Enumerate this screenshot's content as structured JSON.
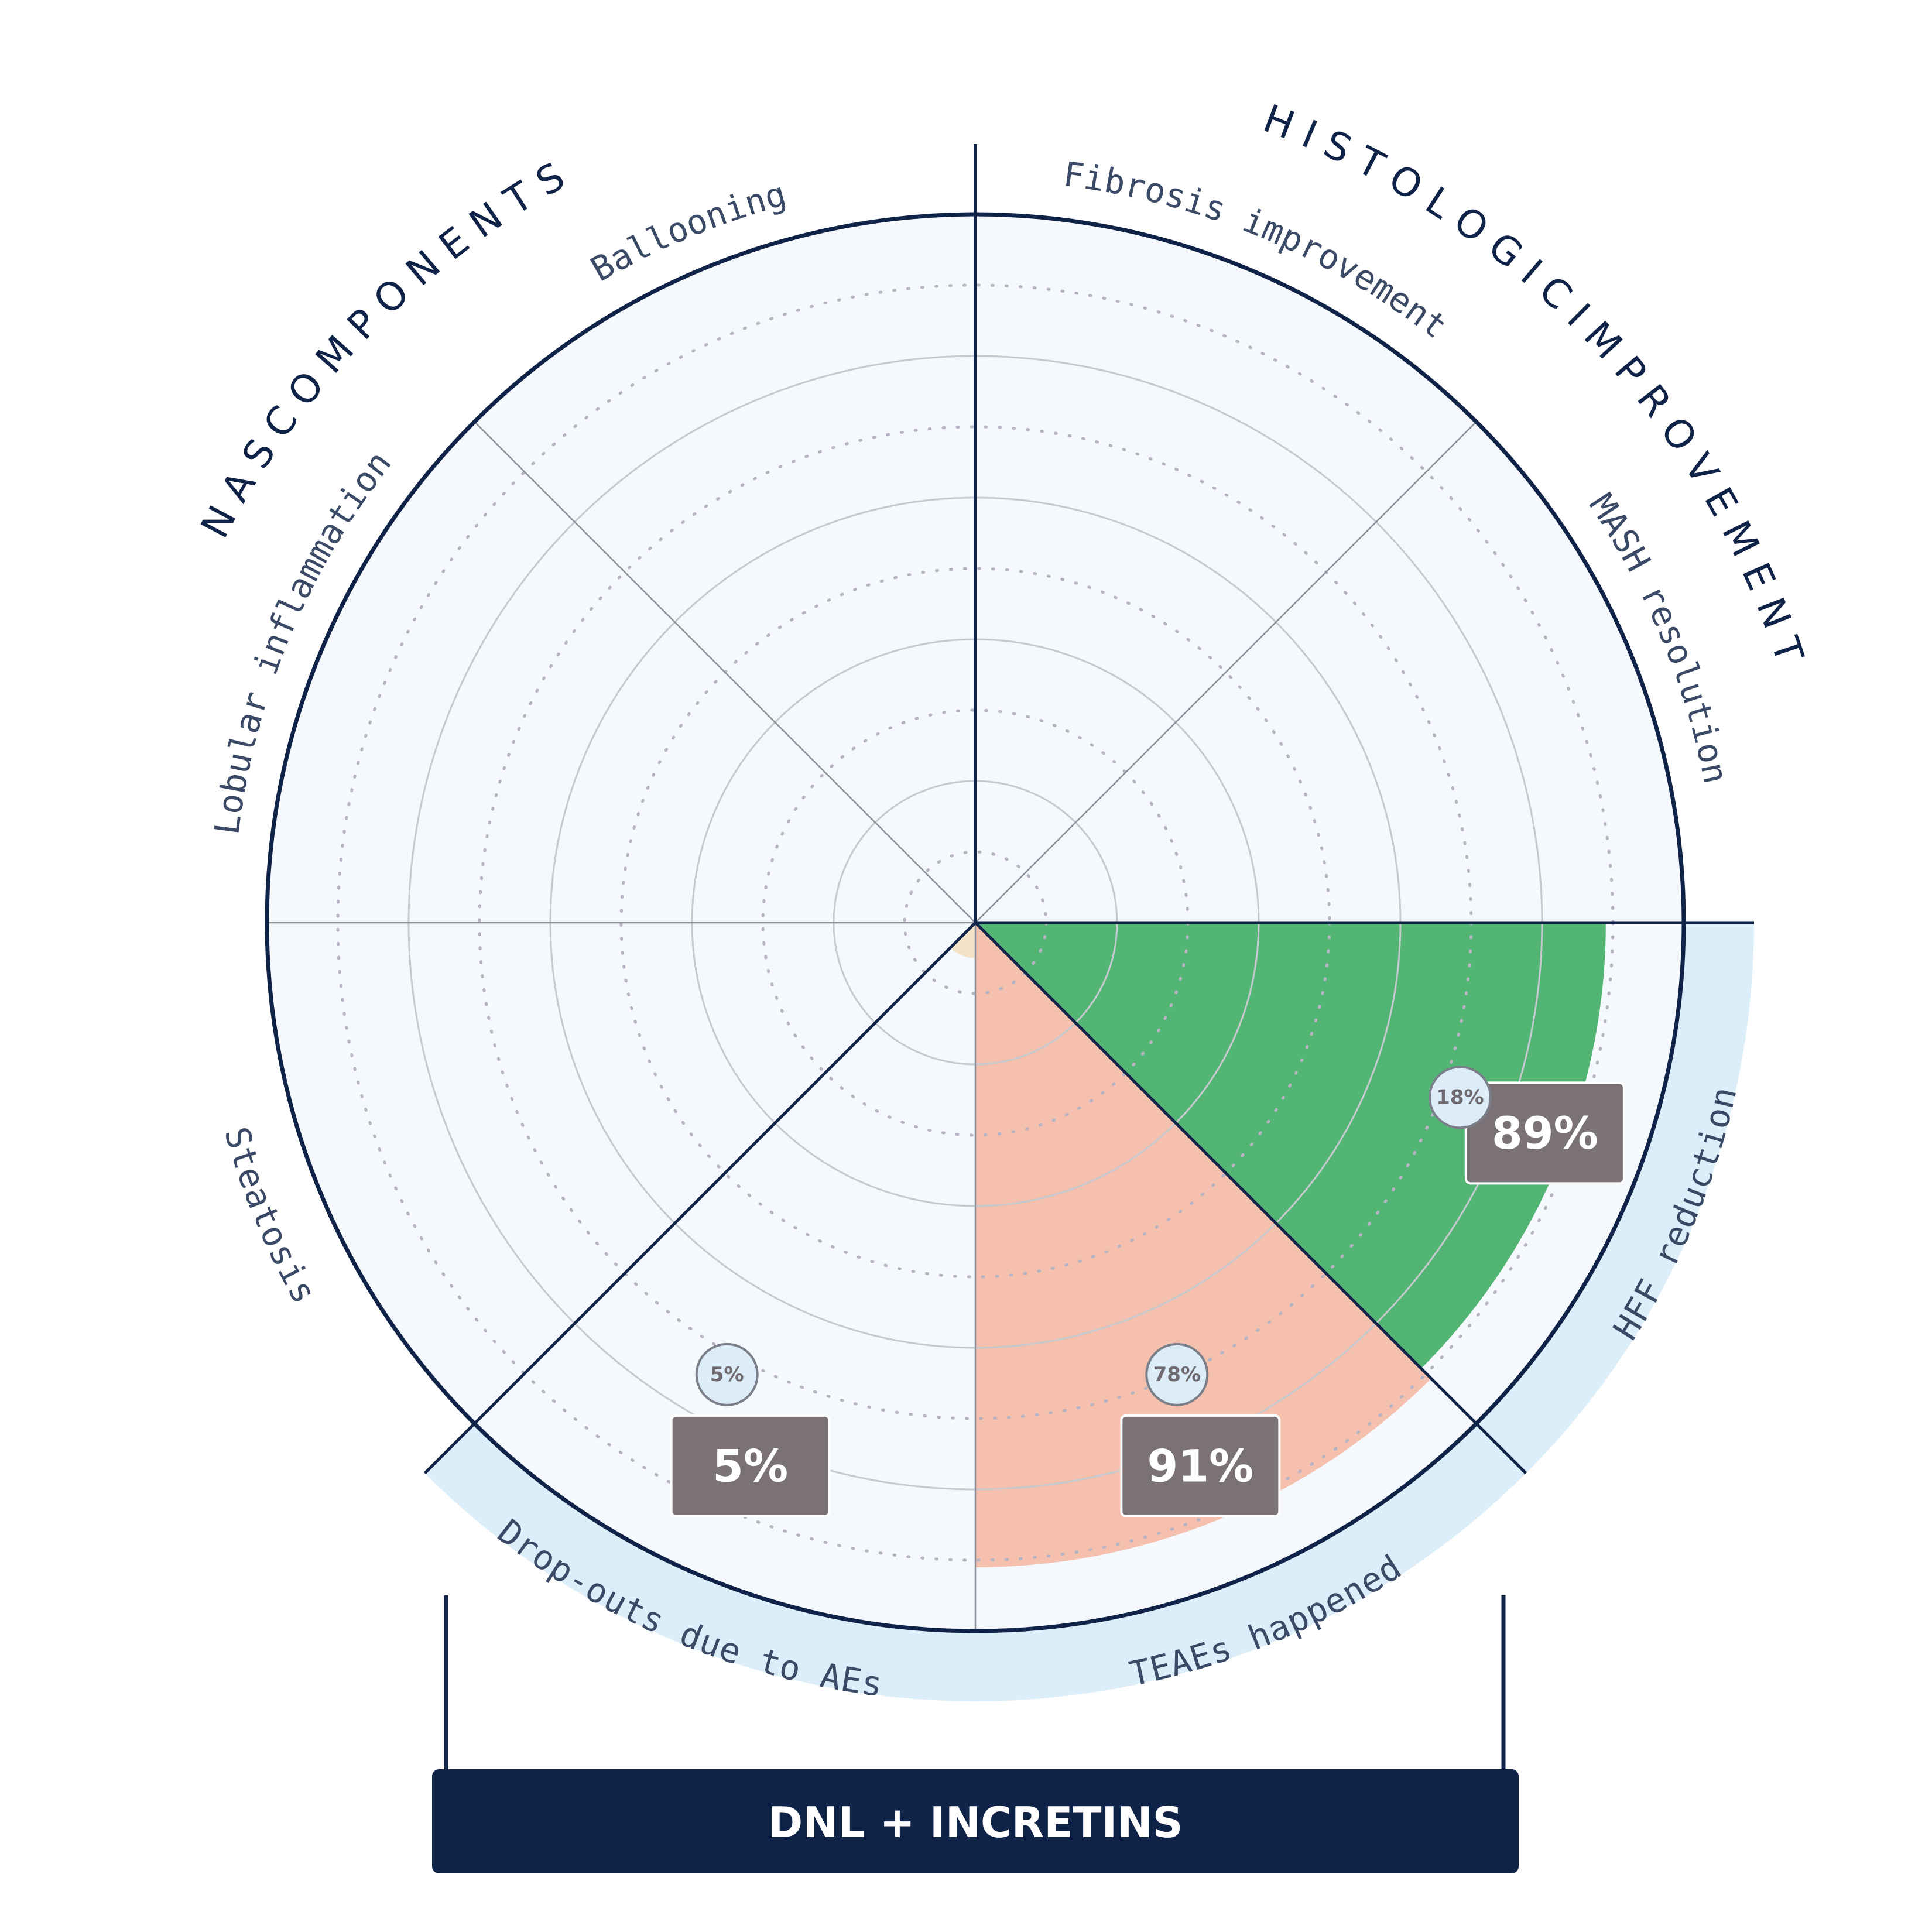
{
  "chart_data": {
    "type": "polar-area",
    "scale_max": 100,
    "rings": [
      10,
      20,
      30,
      40,
      50,
      60,
      70,
      80,
      90,
      100
    ],
    "sectors": [
      {
        "label": "Fibrosis improvement",
        "value": null,
        "reference": null,
        "fill": null,
        "highlight_band": false
      },
      {
        "label": "MASH resolution",
        "value": null,
        "reference": null,
        "fill": null,
        "highlight_band": false
      },
      {
        "label": "HFF reduction",
        "value": 89,
        "display": "89%",
        "reference": 18,
        "reference_display": "18%",
        "fill": "#52b573",
        "highlight_band": true
      },
      {
        "label": "TEAEs happened",
        "value": 91,
        "display": "91%",
        "reference": 78,
        "reference_display": "78%",
        "fill": "#f5c0ad",
        "highlight_band": true
      },
      {
        "label": "Drop-outs due to AEs",
        "value": 5,
        "display": "5%",
        "reference": 5,
        "reference_display": "5%",
        "fill": "#f2e2c7",
        "highlight_band": true
      },
      {
        "label": "Steatosis",
        "value": null,
        "reference": null,
        "fill": null,
        "highlight_band": false
      },
      {
        "label": "Lobular inflammation",
        "value": null,
        "reference": null,
        "fill": null,
        "highlight_band": false
      },
      {
        "label": "Ballooning",
        "value": null,
        "reference": null,
        "fill": null,
        "highlight_band": false
      }
    ],
    "groups": [
      {
        "label": "H I S T O L O G I C   I M P R O V E M E N T"
      },
      {
        "label": "N A S   C O M P O N E N T S"
      }
    ],
    "banner": "DNL + INCRETINS"
  },
  "colors": {
    "navy": "#0f2247",
    "disc": "#f5f9fd",
    "band": "#dbeef9",
    "value_box": "#7a7276",
    "ref_bubble": "#dcecf8",
    "grid": "#c6c9ce"
  }
}
